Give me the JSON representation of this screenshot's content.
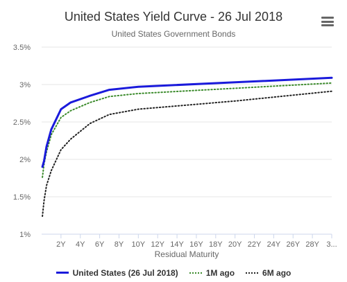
{
  "chart_data": {
    "type": "line",
    "title": "United States Yield Curve - 26 Jul 2018",
    "subtitle": "United States Government Bonds",
    "xlabel": "Residual Maturity",
    "ylabel": "",
    "x_unit": "years",
    "xlim": [
      0,
      30
    ],
    "ylim": [
      1,
      3.5
    ],
    "y_ticks": [
      "1%",
      "1.5%",
      "2%",
      "2.5%",
      "3%",
      "3.5%"
    ],
    "x_ticks": [
      "2Y",
      "4Y",
      "6Y",
      "8Y",
      "10Y",
      "12Y",
      "14Y",
      "16Y",
      "18Y",
      "20Y",
      "22Y",
      "24Y",
      "26Y",
      "28Y",
      "3..."
    ],
    "grid": "horizontal",
    "legend_position": "bottom",
    "series": [
      {
        "name": "United States (26 Jul 2018)",
        "color": "#1a1adb",
        "style": "solid",
        "x": [
          0.08,
          0.25,
          0.5,
          1,
          2,
          3,
          5,
          7,
          10,
          20,
          30
        ],
        "y": [
          1.9,
          1.98,
          2.17,
          2.4,
          2.67,
          2.76,
          2.85,
          2.93,
          2.97,
          3.03,
          3.09
        ]
      },
      {
        "name": "1M ago",
        "color": "#3a8a2a",
        "style": "dotted",
        "x": [
          0.08,
          0.25,
          0.5,
          1,
          2,
          3,
          5,
          7,
          10,
          20,
          30
        ],
        "y": [
          1.76,
          1.94,
          2.1,
          2.33,
          2.56,
          2.65,
          2.76,
          2.84,
          2.88,
          2.95,
          3.02
        ]
      },
      {
        "name": "6M ago",
        "color": "#222222",
        "style": "dotted",
        "x": [
          0.08,
          0.25,
          0.5,
          1,
          2,
          3,
          5,
          7,
          10,
          20,
          30
        ],
        "y": [
          1.24,
          1.45,
          1.65,
          1.85,
          2.13,
          2.27,
          2.48,
          2.6,
          2.67,
          2.78,
          2.91
        ]
      }
    ]
  },
  "menu": {
    "icon": "hamburger-menu-icon"
  }
}
